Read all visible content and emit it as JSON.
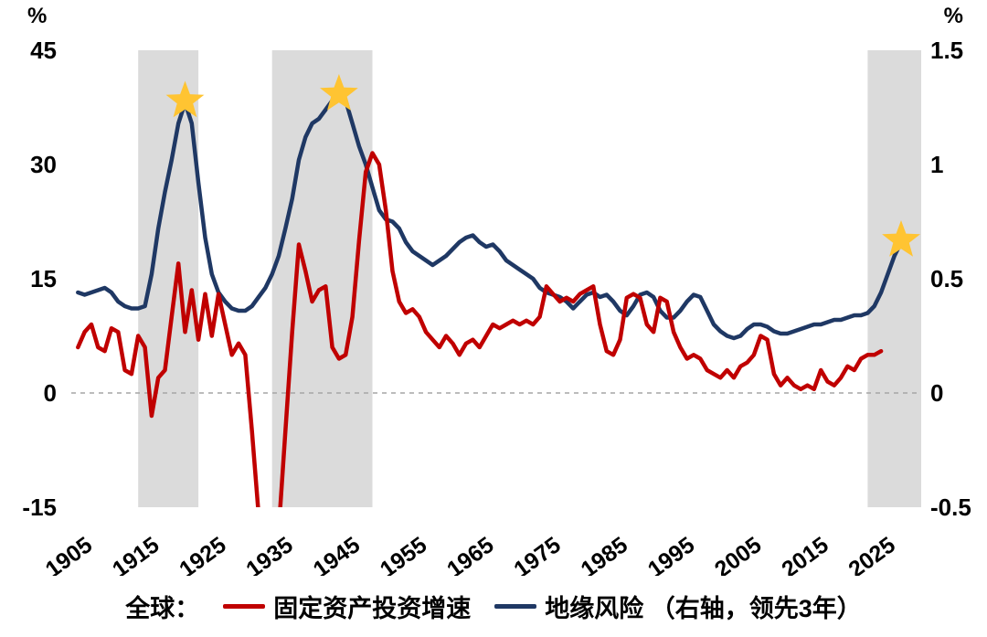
{
  "legend": {
    "prefix": "全球：",
    "items": [
      {
        "id": "fixed-asset-investment",
        "label": "固定资产投资增速",
        "color": "#C00000"
      },
      {
        "id": "geopolitical-risk",
        "label": "地缘风险 （右轴，领先3年）",
        "color": "#1F3864"
      }
    ]
  },
  "chart_data": {
    "type": "line",
    "left_axis": {
      "unit": "%",
      "min": -15,
      "max": 45,
      "ticks": [
        45,
        30,
        15,
        0,
        -15
      ]
    },
    "right_axis": {
      "unit": "%",
      "min": -0.5,
      "max": 1.5,
      "ticks": [
        1.5,
        1,
        0.5,
        0,
        -0.5
      ]
    },
    "x_axis": {
      "min": 1903,
      "max": 2030,
      "ticks": [
        1905,
        1915,
        1925,
        1935,
        1945,
        1955,
        1965,
        1975,
        1985,
        1995,
        2005,
        2015,
        2025
      ]
    },
    "grid": false,
    "zero_reference_line": true,
    "legend_position": "bottom",
    "colors": {
      "band": "#DBDBDB",
      "star": "#FFC432",
      "zero_line": "#A6A6A6"
    },
    "shaded_bands": [
      {
        "from": 1913,
        "to": 1922
      },
      {
        "from": 1933,
        "to": 1948
      },
      {
        "from": 2022,
        "to": 2030
      }
    ],
    "stars": [
      {
        "year": 1920,
        "value": 1.27
      },
      {
        "year": 1943,
        "value": 1.3
      },
      {
        "year": 2027,
        "value": 0.66
      }
    ],
    "series": [
      {
        "id": "fixed-asset-investment",
        "name": "固定资产投资增速",
        "axis": "left",
        "color": "#C00000",
        "start_year": 1904,
        "step": 1,
        "values": [
          6,
          8,
          9,
          6,
          5.5,
          8.5,
          8,
          3,
          2.5,
          7.5,
          6,
          -3,
          2,
          3,
          10,
          17,
          8,
          13.5,
          7,
          13,
          7.5,
          13,
          9,
          5,
          6.5,
          5,
          -5,
          -16,
          -22,
          -25,
          -18,
          -5,
          8,
          19.5,
          16,
          12,
          13.5,
          14,
          6,
          4.5,
          5,
          10,
          20,
          29,
          31.5,
          30,
          24,
          16,
          12,
          10.5,
          11,
          10,
          8,
          7,
          6,
          7.5,
          6.5,
          5,
          6.5,
          7,
          6,
          7.5,
          9,
          8.5,
          9,
          9.5,
          9,
          9.5,
          9,
          10,
          14,
          13,
          12,
          12.5,
          12,
          13,
          13.5,
          14,
          9,
          5.5,
          5,
          7,
          12.5,
          13,
          12.5,
          9,
          8,
          12.5,
          12,
          8,
          6,
          4.5,
          5,
          4.5,
          3,
          2.5,
          2,
          3,
          2,
          3.5,
          4,
          5,
          7.5,
          7,
          2.5,
          1,
          2,
          1,
          0.5,
          1,
          0.5,
          3,
          1.5,
          1,
          2,
          3.5,
          3,
          4.5,
          5,
          5,
          5.5
        ]
      },
      {
        "id": "geopolitical-risk",
        "name": "地缘风险（右轴，领先3年）",
        "axis": "right",
        "color": "#1F3864",
        "start_year": 1904,
        "step": 1,
        "values": [
          0.44,
          0.43,
          0.44,
          0.45,
          0.46,
          0.44,
          0.4,
          0.38,
          0.37,
          0.37,
          0.38,
          0.52,
          0.72,
          0.88,
          1.02,
          1.18,
          1.27,
          1.18,
          0.92,
          0.68,
          0.52,
          0.44,
          0.4,
          0.37,
          0.36,
          0.36,
          0.38,
          0.42,
          0.46,
          0.52,
          0.6,
          0.72,
          0.85,
          1.02,
          1.12,
          1.18,
          1.2,
          1.24,
          1.28,
          1.3,
          1.28,
          1.18,
          1.08,
          1.0,
          0.9,
          0.8,
          0.76,
          0.75,
          0.72,
          0.66,
          0.62,
          0.6,
          0.58,
          0.56,
          0.58,
          0.6,
          0.63,
          0.66,
          0.68,
          0.69,
          0.66,
          0.64,
          0.65,
          0.62,
          0.58,
          0.56,
          0.54,
          0.52,
          0.5,
          0.46,
          0.44,
          0.43,
          0.42,
          0.4,
          0.37,
          0.4,
          0.43,
          0.44,
          0.42,
          0.43,
          0.4,
          0.36,
          0.34,
          0.38,
          0.43,
          0.44,
          0.42,
          0.36,
          0.33,
          0.33,
          0.36,
          0.4,
          0.43,
          0.42,
          0.36,
          0.3,
          0.27,
          0.25,
          0.24,
          0.25,
          0.28,
          0.3,
          0.3,
          0.29,
          0.27,
          0.26,
          0.26,
          0.27,
          0.28,
          0.29,
          0.3,
          0.3,
          0.31,
          0.32,
          0.32,
          0.33,
          0.34,
          0.34,
          0.35,
          0.38,
          0.44,
          0.52,
          0.6,
          0.66
        ]
      }
    ]
  }
}
